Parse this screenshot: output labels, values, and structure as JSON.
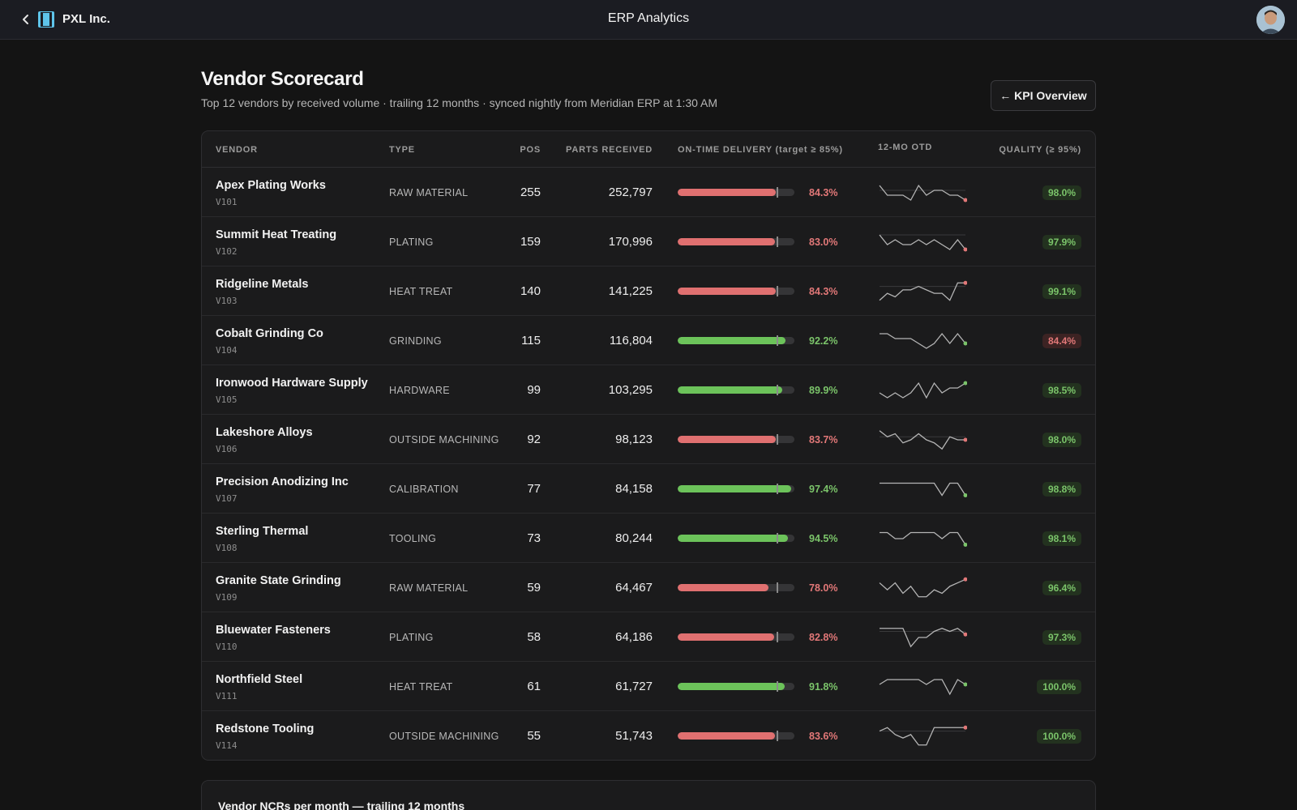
{
  "header": {
    "org_name": "PXL Inc.",
    "app_title": "ERP Analytics",
    "back_icon": "chevron-left-icon",
    "logo_icon": "pxl-logo-icon",
    "avatar": "user-avatar"
  },
  "page": {
    "title": "Vendor Scorecard",
    "subtitle": "Top 12 vendors by received volume · trailing 12 months · synced nightly from Meridian ERP at 1:30 AM",
    "kpi_button": "← KPI Overview"
  },
  "colors": {
    "bad": "#e27878",
    "good": "#7bc46a",
    "bar_bad": "#e07070",
    "bar_good": "#6cc35a"
  },
  "otd_target": 85,
  "quality_target": 95,
  "table": {
    "headers": {
      "vendor": "VENDOR",
      "type": "TYPE",
      "pos": "POS",
      "parts": "PARTS RECEIVED",
      "otd": "ON-TIME DELIVERY (target ≥ 85%)",
      "spark": "12-MO OTD",
      "quality": "QUALITY (≥ 95%)"
    },
    "rows": [
      {
        "name": "Apex Plating Works",
        "code": "V101",
        "type": "RAW MATERIAL",
        "pos": "255",
        "parts": "252,797",
        "otd": 84.3,
        "otd_label": "84.3%",
        "quality": 98.0,
        "quality_label": "98.0%",
        "trend": [
          86,
          84,
          84,
          84,
          83,
          86,
          84,
          85,
          85,
          84,
          84,
          83
        ]
      },
      {
        "name": "Summit Heat Treating",
        "code": "V102",
        "type": "PLATING",
        "pos": "159",
        "parts": "170,996",
        "otd": 83.0,
        "otd_label": "83.0%",
        "quality": 97.9,
        "quality_label": "97.9%",
        "trend": [
          85,
          83,
          84,
          83,
          83,
          84,
          83,
          84,
          83,
          82,
          84,
          82
        ]
      },
      {
        "name": "Ridgeline Metals",
        "code": "V103",
        "type": "HEAT TREAT",
        "pos": "140",
        "parts": "141,225",
        "otd": 84.3,
        "otd_label": "84.3%",
        "quality": 99.1,
        "quality_label": "99.1%",
        "trend": [
          81,
          83,
          82,
          84,
          84,
          85,
          84,
          83,
          83,
          81,
          86,
          86
        ]
      },
      {
        "name": "Cobalt Grinding Co",
        "code": "V104",
        "type": "GRINDING",
        "pos": "115",
        "parts": "116,804",
        "otd": 92.2,
        "otd_label": "92.2%",
        "quality": 84.4,
        "quality_label": "84.4%",
        "trend": [
          93,
          93,
          92,
          92,
          92,
          91,
          90,
          91,
          93,
          91,
          93,
          91
        ]
      },
      {
        "name": "Ironwood Hardware Supply",
        "code": "V105",
        "type": "HARDWARE",
        "pos": "99",
        "parts": "103,295",
        "otd": 89.9,
        "otd_label": "89.9%",
        "quality": 98.5,
        "quality_label": "98.5%",
        "trend": [
          88,
          87,
          88,
          87,
          88,
          90,
          87,
          90,
          88,
          89,
          89,
          90
        ]
      },
      {
        "name": "Lakeshore Alloys",
        "code": "V106",
        "type": "OUTSIDE MACHINING",
        "pos": "92",
        "parts": "98,123",
        "otd": 83.7,
        "otd_label": "83.7%",
        "quality": 98.0,
        "quality_label": "98.0%",
        "trend": [
          87,
          85,
          86,
          83,
          84,
          86,
          84,
          83,
          81,
          85,
          84,
          84
        ]
      },
      {
        "name": "Precision Anodizing Inc",
        "code": "V107",
        "type": "CALIBRATION",
        "pos": "77",
        "parts": "84,158",
        "otd": 97.4,
        "otd_label": "97.4%",
        "quality": 98.8,
        "quality_label": "98.8%",
        "trend": [
          99,
          99,
          99,
          99,
          99,
          99,
          99,
          99,
          97,
          99,
          99,
          97
        ]
      },
      {
        "name": "Sterling Thermal",
        "code": "V108",
        "type": "TOOLING",
        "pos": "73",
        "parts": "80,244",
        "otd": 94.5,
        "otd_label": "94.5%",
        "quality": 98.1,
        "quality_label": "98.1%",
        "trend": [
          96,
          96,
          95,
          95,
          96,
          96,
          96,
          96,
          95,
          96,
          96,
          94
        ]
      },
      {
        "name": "Granite State Grinding",
        "code": "V109",
        "type": "RAW MATERIAL",
        "pos": "59",
        "parts": "64,467",
        "otd": 78.0,
        "otd_label": "78.0%",
        "quality": 96.4,
        "quality_label": "96.4%",
        "trend": [
          80,
          78,
          80,
          77,
          79,
          76,
          76,
          78,
          77,
          79,
          80,
          81
        ]
      },
      {
        "name": "Bluewater Fasteners",
        "code": "V110",
        "type": "PLATING",
        "pos": "58",
        "parts": "64,186",
        "otd": 82.8,
        "otd_label": "82.8%",
        "quality": 97.3,
        "quality_label": "97.3%",
        "trend": [
          86,
          86,
          86,
          86,
          80,
          83,
          83,
          85,
          86,
          85,
          86,
          84
        ]
      },
      {
        "name": "Northfield Steel",
        "code": "V111",
        "type": "HEAT TREAT",
        "pos": "61",
        "parts": "61,727",
        "otd": 91.8,
        "otd_label": "91.8%",
        "quality": 100.0,
        "quality_label": "100.0%",
        "trend": [
          92,
          93,
          93,
          93,
          93,
          93,
          92,
          93,
          93,
          90,
          93,
          92
        ]
      },
      {
        "name": "Redstone Tooling",
        "code": "V114",
        "type": "OUTSIDE MACHINING",
        "pos": "55",
        "parts": "51,743",
        "otd": 83.6,
        "otd_label": "83.6%",
        "quality": 100.0,
        "quality_label": "100.0%",
        "trend": [
          85,
          86,
          84,
          83,
          84,
          81,
          81,
          86,
          86,
          86,
          86,
          86
        ]
      }
    ]
  },
  "ncr_section": {
    "title": "Vendor NCRs per month — trailing 12 months"
  }
}
